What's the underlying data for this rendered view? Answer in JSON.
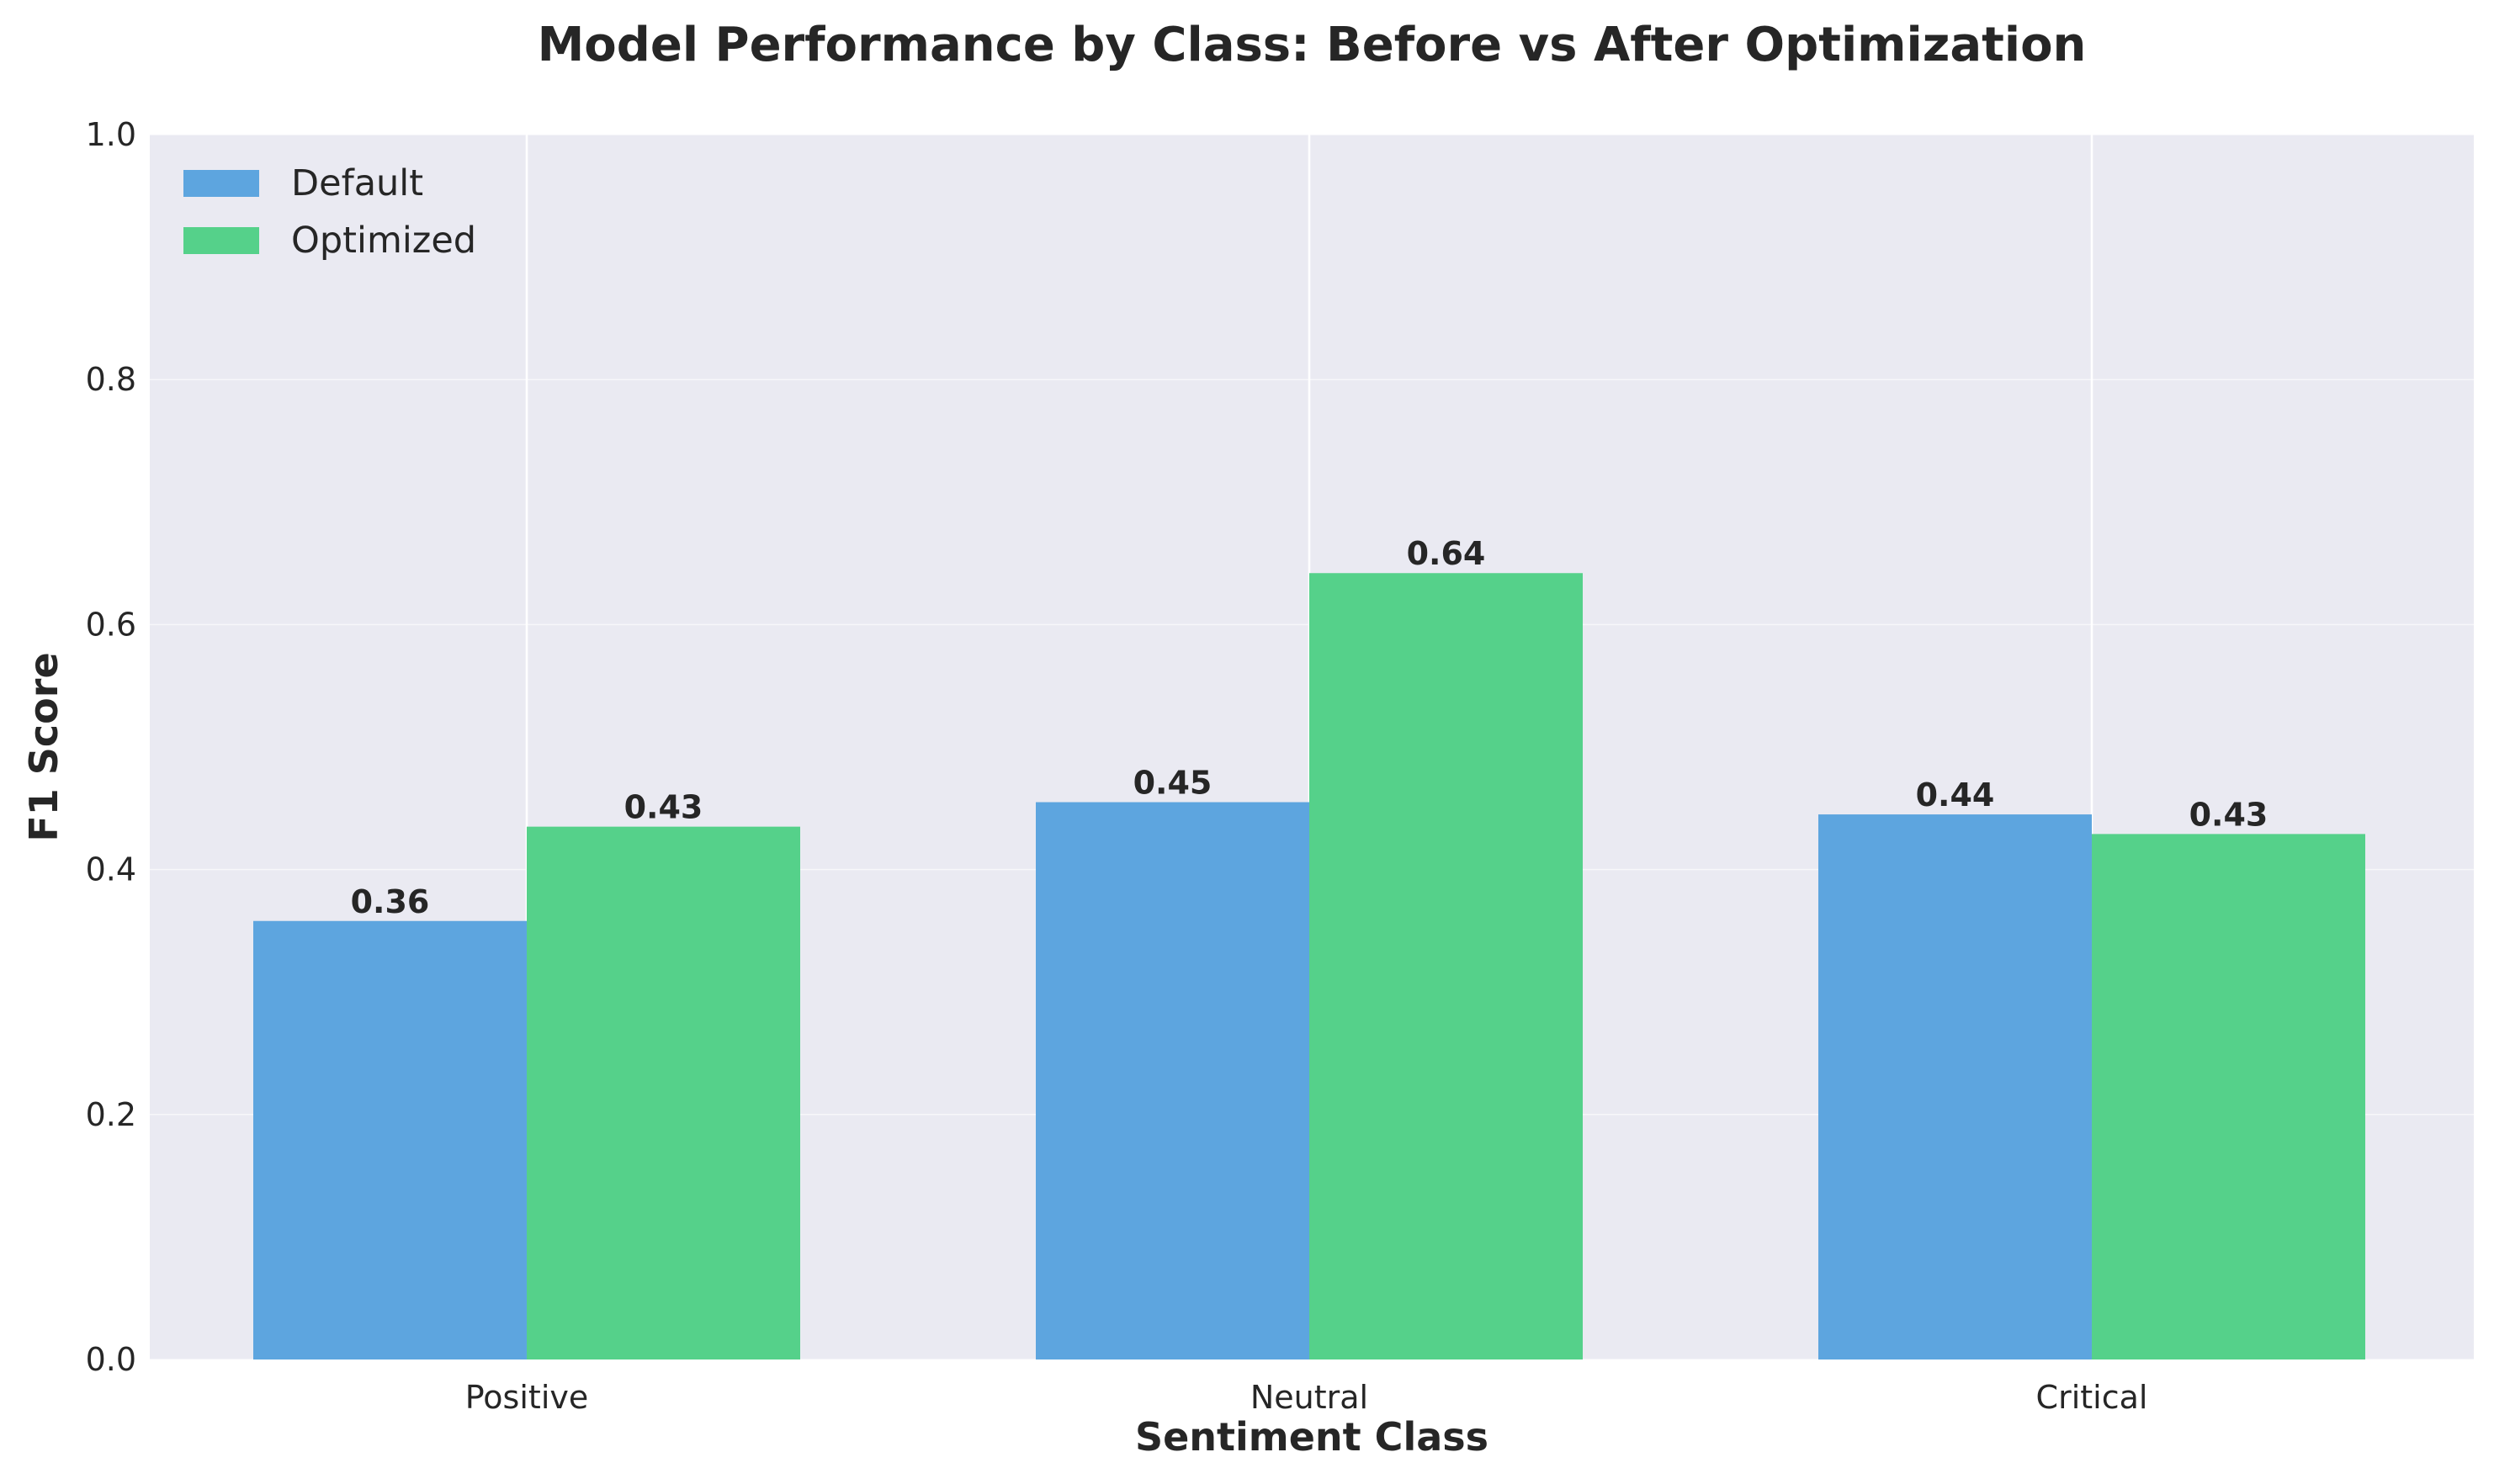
{
  "chart_data": {
    "type": "bar",
    "title": "Model Performance by Class: Before vs After Optimization",
    "xlabel": "Sentiment Class",
    "ylabel": "F1 Score",
    "categories": [
      "Positive",
      "Neutral",
      "Critical"
    ],
    "series": [
      {
        "name": "Default",
        "values": [
          0.358,
          0.455,
          0.445
        ],
        "labels": [
          "0.36",
          "0.45",
          "0.44"
        ],
        "color": "#5DA5DF"
      },
      {
        "name": "Optimized",
        "values": [
          0.435,
          0.642,
          0.429
        ],
        "labels": [
          "0.43",
          "0.64",
          "0.43"
        ],
        "color": "#55D18A"
      }
    ],
    "ylim": [
      0,
      1.0
    ],
    "yticks": [
      0.0,
      0.2,
      0.4,
      0.6,
      0.8,
      1.0
    ],
    "ytick_labels": [
      "0.0",
      "0.2",
      "0.4",
      "0.6",
      "0.8",
      "1.0"
    ],
    "grid": true,
    "legend_position": "top-left",
    "background_color": "#EAEAF2",
    "grid_color": "#FFFFFF"
  }
}
